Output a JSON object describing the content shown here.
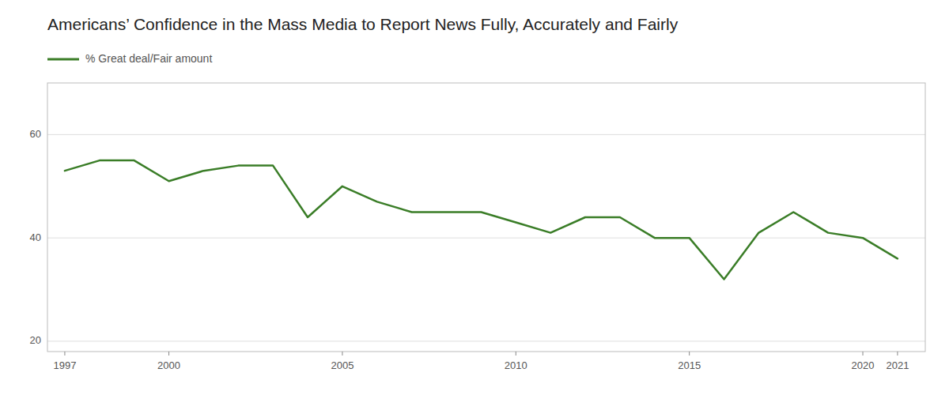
{
  "chart_data": {
    "type": "line",
    "title": "Americans’ Confidence in the Mass Media to Report News Fully, Accurately and Fairly",
    "x": [
      1997,
      1998,
      1999,
      2000,
      2001,
      2002,
      2003,
      2004,
      2005,
      2006,
      2007,
      2008,
      2009,
      2010,
      2011,
      2012,
      2013,
      2014,
      2015,
      2016,
      2017,
      2018,
      2019,
      2020,
      2021
    ],
    "series": [
      {
        "name": "% Great deal/Fair amount",
        "color": "#3a7d27",
        "values": [
          53,
          55,
          55,
          51,
          53,
          54,
          54,
          44,
          50,
          47,
          45,
          45,
          45,
          43,
          41,
          44,
          44,
          40,
          40,
          32,
          41,
          45,
          41,
          40,
          36
        ]
      }
    ],
    "xlim": [
      1996.5,
      2021.8
    ],
    "ylim": [
      18,
      70
    ],
    "xticks": [
      1997,
      2000,
      2005,
      2010,
      2015,
      2020,
      2021
    ],
    "yticks": [
      20,
      40,
      60
    ],
    "grid": true,
    "legend": "top-left"
  }
}
